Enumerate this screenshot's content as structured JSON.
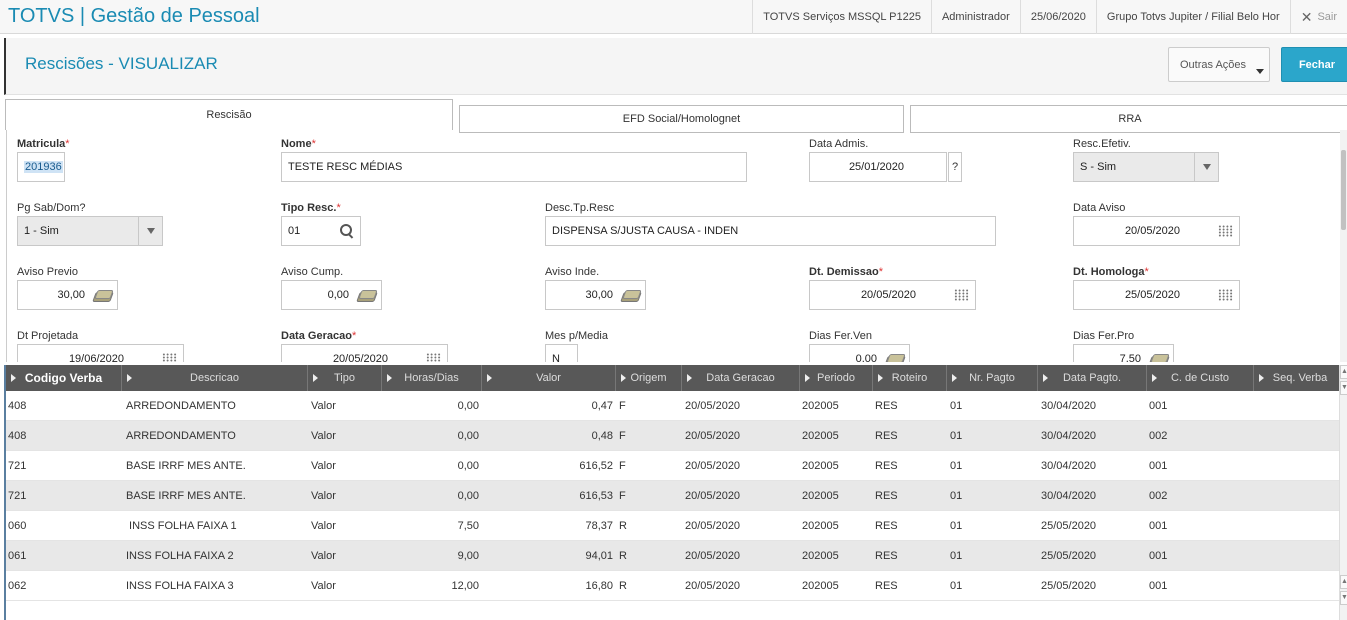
{
  "app": {
    "title": "TOTVS | Gestão de Pessoal",
    "environment": "TOTVS Serviços MSSQL P1225",
    "user": "Administrador",
    "date": "25/06/2020",
    "branch": "Grupo Totvs Jupiter / Filial Belo Hor",
    "exit_label": "Sair"
  },
  "page": {
    "title": "Rescisões - VISUALIZAR",
    "other_actions_label": "Outras Ações",
    "close_label": "Fechar"
  },
  "tabs": [
    {
      "label": "Rescisão"
    },
    {
      "label": "EFD Social/Homolognet"
    },
    {
      "label": "RRA"
    }
  ],
  "form": {
    "matricula": {
      "label": "Matricula",
      "value": "201936"
    },
    "nome": {
      "label": "Nome",
      "value": "TESTE RESC MÉDIAS"
    },
    "data_admis": {
      "label": "Data Admis.",
      "value": "25/01/2020",
      "help": "?"
    },
    "resc_efetiv": {
      "label": "Resc.Efetiv.",
      "value": "S - Sim"
    },
    "pg_sab_dom": {
      "label": "Pg Sab/Dom?",
      "value": "1 - Sim"
    },
    "tipo_resc": {
      "label": "Tipo Resc.",
      "value": "01"
    },
    "desc_tp_resc": {
      "label": "Desc.Tp.Resc",
      "value": "DISPENSA S/JUSTA CAUSA - INDEN"
    },
    "data_aviso": {
      "label": "Data Aviso",
      "value": "20/05/2020"
    },
    "aviso_previo": {
      "label": "Aviso Previo",
      "value": "30,00"
    },
    "aviso_cump": {
      "label": "Aviso Cump.",
      "value": "0,00"
    },
    "aviso_inde": {
      "label": "Aviso Inde.",
      "value": "30,00"
    },
    "dt_demissao": {
      "label": "Dt. Demissao",
      "value": "20/05/2020"
    },
    "dt_homologa": {
      "label": "Dt. Homologa",
      "value": "25/05/2020"
    },
    "dt_projetada": {
      "label": "Dt Projetada",
      "value": "19/06/2020"
    },
    "data_geracao": {
      "label": "Data Geracao",
      "value": "20/05/2020"
    },
    "mes_media": {
      "label": "Mes p/Media",
      "value": "N"
    },
    "dias_fer_ven": {
      "label": "Dias Fer.Ven",
      "value": "0,00"
    },
    "dias_fer_pro": {
      "label": "Dias Fer.Pro",
      "value": "7,50"
    },
    "required_mark": "*"
  },
  "grid": {
    "columns": [
      "Codigo Verba",
      "Descricao",
      "Tipo",
      "Horas/Dias",
      "Valor",
      "Origem",
      "Data Geracao",
      "Periodo",
      "Roteiro",
      "Nr. Pagto",
      "Data Pagto.",
      "C. de Custo",
      "Seq. Verba"
    ],
    "rows": [
      {
        "codigo": "408",
        "descricao": "ARREDONDAMENTO",
        "tipo": "Valor",
        "horas": "0,00",
        "valor": "0,47",
        "origem": "F",
        "data_geracao": "20/05/2020",
        "periodo": "202005",
        "roteiro": "RES",
        "nr_pagto": "01",
        "data_pagto": "30/04/2020",
        "ccusto": "001"
      },
      {
        "codigo": "408",
        "descricao": "ARREDONDAMENTO",
        "tipo": "Valor",
        "horas": "0,00",
        "valor": "0,48",
        "origem": "F",
        "data_geracao": "20/05/2020",
        "periodo": "202005",
        "roteiro": "RES",
        "nr_pagto": "01",
        "data_pagto": "30/04/2020",
        "ccusto": "002"
      },
      {
        "codigo": "721",
        "descricao": "BASE IRRF MES ANTE.",
        "tipo": "Valor",
        "horas": "0,00",
        "valor": "616,52",
        "origem": "F",
        "data_geracao": "20/05/2020",
        "periodo": "202005",
        "roteiro": "RES",
        "nr_pagto": "01",
        "data_pagto": "30/04/2020",
        "ccusto": "001"
      },
      {
        "codigo": "721",
        "descricao": "BASE IRRF MES ANTE.",
        "tipo": "Valor",
        "horas": "0,00",
        "valor": "616,53",
        "origem": "F",
        "data_geracao": "20/05/2020",
        "periodo": "202005",
        "roteiro": "RES",
        "nr_pagto": "01",
        "data_pagto": "30/04/2020",
        "ccusto": "002"
      },
      {
        "codigo": "060",
        "descricao": " INSS FOLHA FAIXA 1",
        "tipo": "Valor",
        "horas": "7,50",
        "valor": "78,37",
        "origem": "R",
        "data_geracao": "20/05/2020",
        "periodo": "202005",
        "roteiro": "RES",
        "nr_pagto": "01",
        "data_pagto": "25/05/2020",
        "ccusto": "001"
      },
      {
        "codigo": "061",
        "descricao": "INSS FOLHA FAIXA 2",
        "tipo": "Valor",
        "horas": "9,00",
        "valor": "94,01",
        "origem": "R",
        "data_geracao": "20/05/2020",
        "periodo": "202005",
        "roteiro": "RES",
        "nr_pagto": "01",
        "data_pagto": "25/05/2020",
        "ccusto": "001"
      },
      {
        "codigo": "062",
        "descricao": "INSS FOLHA FAIXA 3",
        "tipo": "Valor",
        "horas": "12,00",
        "valor": "16,80",
        "origem": "R",
        "data_geracao": "20/05/2020",
        "periodo": "202005",
        "roteiro": "RES",
        "nr_pagto": "01",
        "data_pagto": "25/05/2020",
        "ccusto": "001"
      }
    ]
  }
}
